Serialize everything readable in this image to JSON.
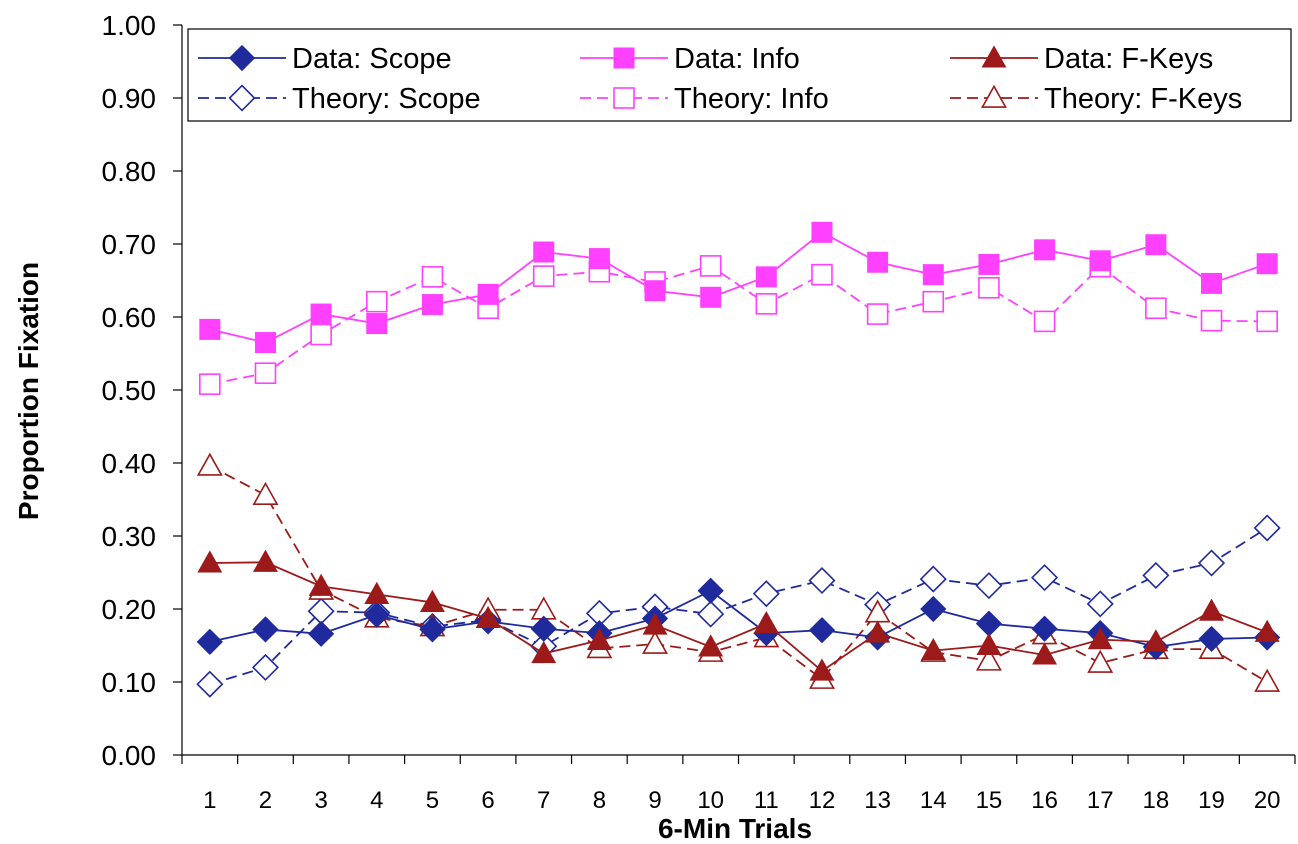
{
  "chart_data": {
    "type": "line",
    "title": "",
    "xlabel": "6-Min Trials",
    "ylabel": "Proportion Fixation",
    "x": [
      1,
      2,
      3,
      4,
      5,
      6,
      7,
      8,
      9,
      10,
      11,
      12,
      13,
      14,
      15,
      16,
      17,
      18,
      19,
      20
    ],
    "x_tick_labels": [
      "1",
      "2",
      "3",
      "4",
      "5",
      "6",
      "7",
      "8",
      "9",
      "10",
      "11",
      "12",
      "13",
      "14",
      "15",
      "16",
      "17",
      "18",
      "19",
      "20"
    ],
    "ylim": [
      0,
      1
    ],
    "y_ticks": [
      0,
      0.1,
      0.2,
      0.3,
      0.4,
      0.5,
      0.6,
      0.7,
      0.8,
      0.9,
      1.0
    ],
    "y_tick_labels": [
      "0.00",
      "0.10",
      "0.20",
      "0.30",
      "0.40",
      "0.50",
      "0.60",
      "0.70",
      "0.80",
      "0.90",
      "1.00"
    ],
    "grid": false,
    "legend_position": "top",
    "series": [
      {
        "name": "Data: Scope",
        "color": "#1f2a9c",
        "marker": "diamond",
        "filled": true,
        "dashed": false,
        "values": [
          0.155,
          0.172,
          0.166,
          0.192,
          0.172,
          0.183,
          0.173,
          0.167,
          0.187,
          0.225,
          0.167,
          0.171,
          0.161,
          0.2,
          0.18,
          0.173,
          0.167,
          0.148,
          0.159,
          0.161
        ]
      },
      {
        "name": "Data: Info",
        "color": "#ff40ff",
        "marker": "square",
        "filled": true,
        "dashed": false,
        "values": [
          0.583,
          0.565,
          0.604,
          0.591,
          0.617,
          0.631,
          0.689,
          0.68,
          0.636,
          0.627,
          0.655,
          0.716,
          0.675,
          0.658,
          0.672,
          0.692,
          0.677,
          0.699,
          0.646,
          0.673
        ]
      },
      {
        "name": "Data: F-Keys",
        "color": "#9c1a1a",
        "marker": "triangle",
        "filled": true,
        "dashed": false,
        "values": [
          0.263,
          0.264,
          0.231,
          0.22,
          0.209,
          0.187,
          0.139,
          0.157,
          0.178,
          0.148,
          0.18,
          0.115,
          0.167,
          0.143,
          0.15,
          0.137,
          0.158,
          0.155,
          0.197,
          0.168
        ]
      },
      {
        "name": "Theory: Scope",
        "color": "#1f2a9c",
        "marker": "diamond",
        "filled": false,
        "dashed": true,
        "values": [
          0.097,
          0.12,
          0.197,
          0.195,
          0.176,
          0.185,
          0.149,
          0.194,
          0.203,
          0.193,
          0.221,
          0.239,
          0.206,
          0.241,
          0.232,
          0.243,
          0.207,
          0.246,
          0.263,
          0.311
        ]
      },
      {
        "name": "Theory: Info",
        "color": "#ff40ff",
        "marker": "square",
        "filled": false,
        "dashed": true,
        "values": [
          0.508,
          0.523,
          0.576,
          0.621,
          0.655,
          0.612,
          0.656,
          0.662,
          0.648,
          0.67,
          0.618,
          0.658,
          0.604,
          0.621,
          0.64,
          0.594,
          0.669,
          0.612,
          0.595,
          0.594
        ]
      },
      {
        "name": "Theory: F-Keys",
        "color": "#9c1a1a",
        "marker": "triangle",
        "filled": false,
        "dashed": true,
        "values": [
          0.396,
          0.356,
          0.226,
          0.188,
          0.176,
          0.199,
          0.199,
          0.146,
          0.152,
          0.141,
          0.161,
          0.104,
          0.195,
          0.141,
          0.129,
          0.165,
          0.126,
          0.145,
          0.145,
          0.1
        ]
      }
    ]
  }
}
